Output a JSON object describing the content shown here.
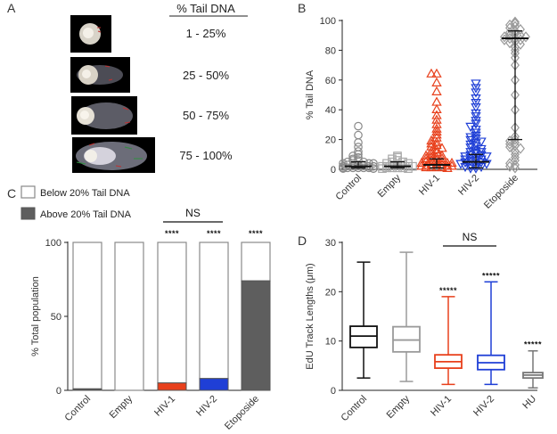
{
  "panels": {
    "A": {
      "label": "A",
      "header": "% Tail DNA",
      "ranges": [
        "1 - 25%",
        "25 - 50%",
        "50 - 75%",
        "75 - 100%"
      ]
    },
    "B": {
      "label": "B"
    },
    "C": {
      "label": "C"
    },
    "D": {
      "label": "D"
    }
  },
  "chart_data": [
    {
      "id": "B",
      "type": "scatter",
      "ylabel": "% Tail DNA",
      "ylim": [
        0,
        100
      ],
      "yticks": [
        0,
        20,
        40,
        60,
        80,
        100
      ],
      "categories": [
        "Control",
        "Empty",
        "HIV-1",
        "HIV-2",
        "Etoposide"
      ],
      "markers": [
        "circle",
        "square",
        "triangle-up",
        "triangle-down",
        "diamond"
      ],
      "colors": [
        "#8a8a8a",
        "#a8a8a8",
        "#e8401c",
        "#1f3fd6",
        "#9a9a9a"
      ],
      "median": [
        2,
        2,
        3,
        5,
        88
      ],
      "error_low": [
        1,
        1,
        1,
        1,
        20
      ],
      "error_high": [
        5,
        5,
        7,
        10,
        93
      ],
      "points": [
        [
          29,
          23,
          18,
          15,
          12,
          10,
          9,
          8,
          7,
          6,
          6,
          5,
          5,
          4,
          4,
          4,
          3,
          3,
          3,
          3,
          2,
          2,
          2,
          2,
          2,
          1,
          1,
          1,
          1,
          1,
          1,
          0.5,
          0.5,
          0.5
        ],
        [
          9,
          8,
          7,
          6,
          5,
          5,
          4,
          4,
          3,
          3,
          3,
          2,
          2,
          2,
          2,
          1,
          1,
          1,
          1,
          0.5,
          0.5
        ],
        [
          64,
          64,
          58,
          52,
          45,
          40,
          36,
          33,
          30,
          27,
          25,
          23,
          21,
          19,
          18,
          17,
          16,
          15,
          14,
          13,
          12,
          11,
          10,
          9,
          9,
          8,
          8,
          7,
          7,
          6,
          6,
          5,
          5,
          4,
          4,
          4,
          3,
          3,
          3,
          2,
          2,
          2,
          2,
          1,
          1,
          1,
          1,
          0.5
        ],
        [
          58,
          55,
          52,
          48,
          45,
          42,
          38,
          36,
          33,
          31,
          29,
          27,
          25,
          23,
          22,
          21,
          20,
          19,
          18,
          17,
          16,
          15,
          14,
          13,
          12,
          12,
          11,
          10,
          10,
          9,
          9,
          8,
          8,
          7,
          7,
          6,
          6,
          5,
          5,
          4,
          4,
          3,
          3,
          2,
          2,
          1,
          1
        ],
        [
          99,
          98,
          97,
          96,
          95,
          94,
          93,
          92,
          91,
          90,
          90,
          89,
          89,
          88,
          88,
          87,
          87,
          86,
          85,
          84,
          82,
          80,
          78,
          75,
          70,
          60,
          50,
          40,
          28,
          22,
          20,
          19,
          18,
          17,
          16,
          15,
          14,
          12,
          10,
          8,
          6,
          4,
          3,
          2,
          1
        ]
      ]
    },
    {
      "id": "C",
      "type": "bar",
      "stacked": true,
      "ylabel": "% Total population",
      "ylim": [
        0,
        100
      ],
      "yticks": [
        0,
        50,
        100
      ],
      "categories": [
        "Control",
        "Empty",
        "HIV-1",
        "HIV-2",
        "Etoposide"
      ],
      "legend": [
        "Below 20% Tail DNA",
        "Above 20% Tail DNA"
      ],
      "above_colors": [
        "#555555",
        "#555555",
        "#e8401c",
        "#1f3fd6",
        "#5e5e5e"
      ],
      "series": [
        {
          "name": "Above 20% Tail DNA",
          "values": [
            1,
            0,
            5,
            8,
            74
          ]
        },
        {
          "name": "Below 20% Tail DNA",
          "values": [
            99,
            100,
            95,
            92,
            26
          ]
        }
      ],
      "significance": [
        "",
        "",
        "****",
        "****",
        "****"
      ],
      "bracket": {
        "label": "NS",
        "from": "HIV-1",
        "to": "HIV-2"
      }
    },
    {
      "id": "D",
      "type": "box",
      "ylabel": "EdU Track Lengths (μm)",
      "ylim": [
        0,
        30
      ],
      "yticks": [
        0,
        10,
        20,
        30
      ],
      "categories": [
        "Control",
        "Empty",
        "HIV-1",
        "HIV-2",
        "HU"
      ],
      "colors": [
        "#111111",
        "#9a9a9a",
        "#e8401c",
        "#1f3fd6",
        "#777777"
      ],
      "boxes": [
        {
          "min": 2.5,
          "q1": 8.7,
          "median": 11.0,
          "q3": 13.0,
          "max": 26.0
        },
        {
          "min": 1.8,
          "q1": 7.8,
          "median": 10.2,
          "q3": 12.9,
          "max": 28.0
        },
        {
          "min": 1.2,
          "q1": 4.5,
          "median": 5.8,
          "q3": 7.2,
          "max": 19.0
        },
        {
          "min": 1.2,
          "q1": 4.2,
          "median": 5.6,
          "q3": 7.1,
          "max": 22.0
        },
        {
          "min": 0.5,
          "q1": 2.5,
          "median": 3.1,
          "q3": 3.6,
          "max": 8.0
        }
      ],
      "significance": [
        "",
        "",
        "*****",
        "*****",
        "*****"
      ],
      "bracket": {
        "label": "NS",
        "from": "HIV-1",
        "to": "HIV-2"
      }
    }
  ]
}
